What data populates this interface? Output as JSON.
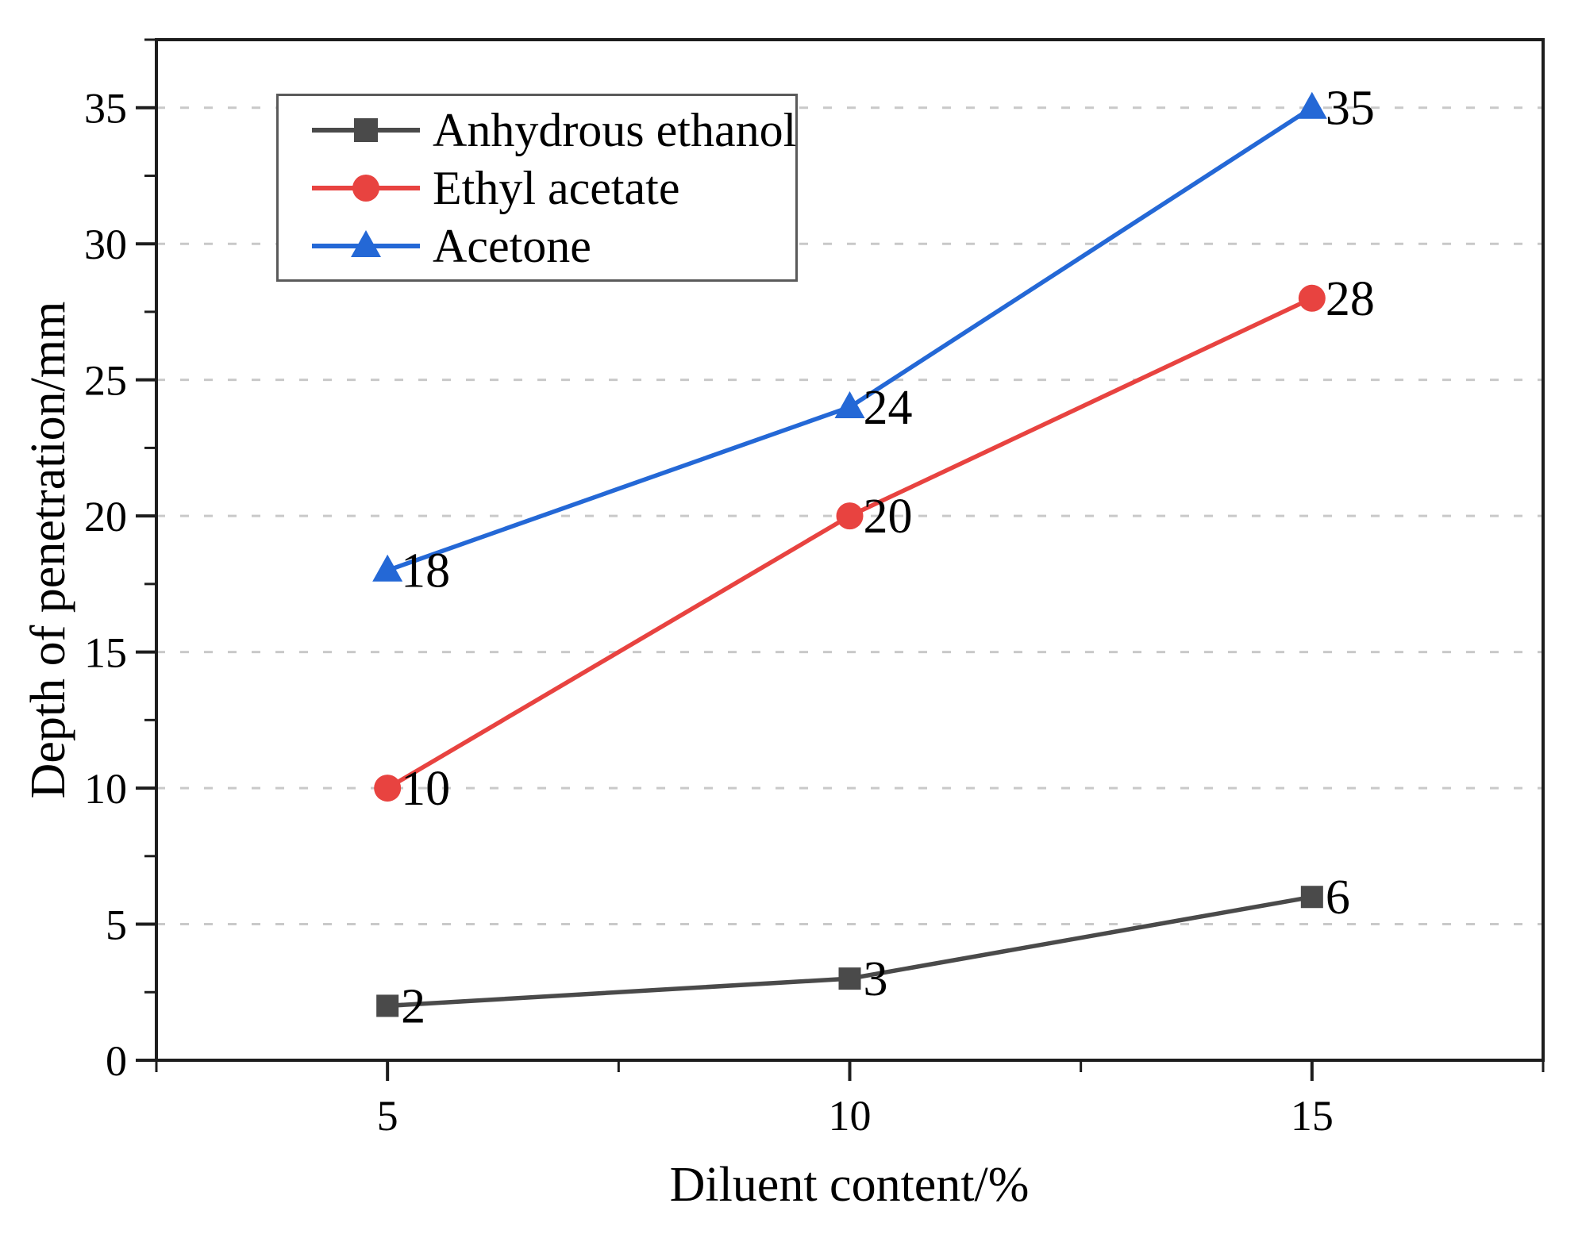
{
  "chart_data": {
    "type": "line",
    "title": "",
    "xlabel": "Diluent content/%",
    "ylabel": "Depth of penetration/mm",
    "x": [
      5,
      10,
      15
    ],
    "series": [
      {
        "name": "Anhydrous ethanol",
        "marker": "square",
        "color": "#4a4a4a",
        "values": [
          2,
          3,
          6
        ]
      },
      {
        "name": "Ethyl acetate",
        "marker": "circle",
        "color": "#e84340",
        "values": [
          10,
          20,
          28
        ]
      },
      {
        "name": "Acetone",
        "marker": "triangle",
        "color": "#2468d6",
        "values": [
          18,
          24,
          35
        ]
      }
    ],
    "show_point_labels": true,
    "xticks": [
      5,
      10,
      15
    ],
    "yticks": [
      0,
      5,
      10,
      15,
      20,
      25,
      30,
      35
    ],
    "x_minor_ticks": [
      2.5,
      7.5,
      12.5,
      17.5
    ],
    "y_minor_ticks": [
      2.5,
      7.5,
      12.5,
      17.5,
      22.5,
      27.5,
      32.5,
      37.5
    ],
    "xlim": [
      2.5,
      17.5
    ],
    "ylim": [
      0,
      37.5
    ],
    "grid": {
      "axis": "y",
      "style": "dashed",
      "color": "#c9c9c9"
    },
    "legend_position": "top-left",
    "colors": {
      "axis": "#1d1d1d",
      "text": "#000000",
      "background": "#ffffff",
      "legend_border": "#5a5a5a"
    }
  }
}
